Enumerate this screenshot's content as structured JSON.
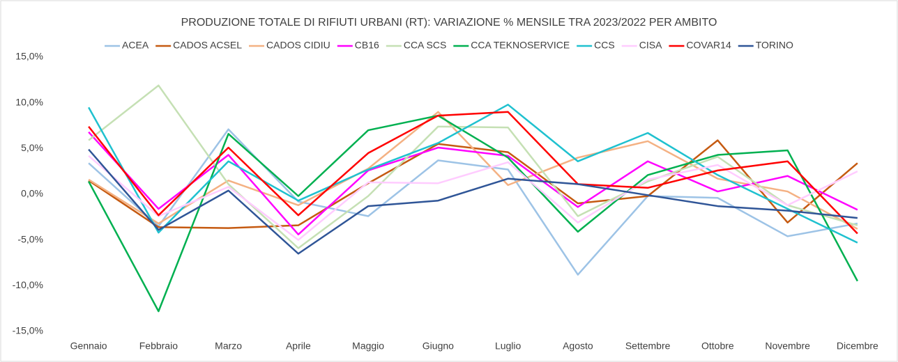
{
  "chart_data": {
    "type": "line",
    "title": "PRODUZIONE TOTALE DI RIFIUTI URBANI (RT): VARIAZIONE % MENSILE TRA 2023/2022 PER AMBITO",
    "categories": [
      "Gennaio",
      "Febbraio",
      "Marzo",
      "Aprile",
      "Maggio",
      "Giugno",
      "Luglio",
      "Agosto",
      "Settembre",
      "Ottobre",
      "Novembre",
      "Dicembre"
    ],
    "ylim": [
      -15,
      15
    ],
    "yticks": [
      {
        "value": -15,
        "label": "-15,0%"
      },
      {
        "value": -10,
        "label": "-10,0%"
      },
      {
        "value": -5,
        "label": "-5,0%"
      },
      {
        "value": 0,
        "label": "0,0%"
      },
      {
        "value": 5,
        "label": "5,0%"
      },
      {
        "value": 10,
        "label": "10,0%"
      },
      {
        "value": 15,
        "label": "15,0%"
      }
    ],
    "grid": false,
    "legend": "top",
    "series": [
      {
        "name": "ACEA",
        "color": "#9dc3e6",
        "values": [
          3.4,
          -3.5,
          7.1,
          -0.8,
          -2.4,
          3.7,
          2.7,
          -8.8,
          -0.2,
          -0.4,
          -4.6,
          -3.2
        ]
      },
      {
        "name": "CADOS ACSEL",
        "color": "#c55a11",
        "values": [
          1.5,
          -3.6,
          -3.7,
          -3.4,
          1.2,
          5.5,
          4.6,
          -1.0,
          -0.2,
          5.9,
          -3.1,
          3.4
        ]
      },
      {
        "name": "CADOS CIDIU",
        "color": "#f4b183",
        "values": [
          1.6,
          -3.2,
          1.5,
          -1.2,
          2.8,
          9.0,
          1.0,
          4.0,
          5.8,
          1.7,
          0.3,
          -3.8
        ]
      },
      {
        "name": "CB16",
        "color": "#ff00ff",
        "values": [
          6.8,
          -1.6,
          4.3,
          -4.4,
          2.6,
          5.1,
          4.2,
          -1.4,
          3.6,
          0.3,
          2.0,
          -1.7
        ]
      },
      {
        "name": "CCA SCS",
        "color": "#c5e0b4",
        "values": [
          5.9,
          11.9,
          1.1,
          -5.9,
          -0.2,
          7.4,
          7.3,
          -2.4,
          1.4,
          4.1,
          -1.2,
          -3.4
        ]
      },
      {
        "name": "CCA TEKNOSERVICE",
        "color": "#00b050",
        "values": [
          1.4,
          -12.8,
          6.6,
          -0.2,
          7.0,
          8.6,
          4.0,
          -4.1,
          2.1,
          4.3,
          4.8,
          -9.5
        ]
      },
      {
        "name": "CCS",
        "color": "#1fc1cf",
        "values": [
          9.5,
          -4.2,
          3.6,
          -0.7,
          2.7,
          5.6,
          9.8,
          3.6,
          6.7,
          2.1,
          -1.6,
          -5.3
        ]
      },
      {
        "name": "CISA",
        "color": "#ffccff",
        "values": [
          4.2,
          -2.4,
          0.8,
          -5.0,
          1.3,
          1.2,
          3.5,
          -3.1,
          1.6,
          3.2,
          -1.2,
          2.5
        ]
      },
      {
        "name": "COVAR14",
        "color": "#ff0000",
        "values": [
          7.4,
          -2.3,
          5.1,
          -2.3,
          4.5,
          8.6,
          9.0,
          1.1,
          0.7,
          2.6,
          3.6,
          -4.3
        ]
      },
      {
        "name": "TORINO",
        "color": "#2f5597",
        "values": [
          4.9,
          -3.9,
          0.4,
          -6.5,
          -1.3,
          -0.7,
          1.7,
          1.1,
          -0.1,
          -1.3,
          -1.8,
          -2.6
        ]
      }
    ]
  }
}
